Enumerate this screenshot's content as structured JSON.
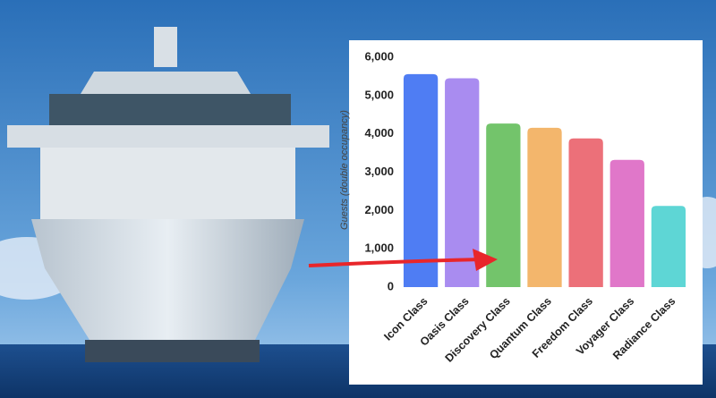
{
  "chart_data": {
    "type": "bar",
    "y_label": "Guests (double occupancy)",
    "categories": [
      "Icon Class",
      "Oasis Class",
      "Discovery Class",
      "Quantum Class",
      "Freedom Class",
      "Voyager Class",
      "Radiance Class"
    ],
    "values": [
      5560,
      5450,
      4270,
      4160,
      3880,
      3320,
      2120
    ],
    "colors": [
      "#4f7df3",
      "#a98cf0",
      "#73c46b",
      "#f3b66c",
      "#ec7079",
      "#e077c9",
      "#5ed6d5"
    ],
    "ylim": [
      0,
      6000
    ],
    "yticks": [
      0,
      {
        "value": 1000,
        "label": "1,000"
      },
      {
        "value": 2000,
        "label": "2,000"
      },
      {
        "value": 3000,
        "label": "3,000"
      },
      {
        "value": 4000,
        "label": "4,000"
      },
      {
        "value": 5000,
        "label": "5,000"
      },
      {
        "value": 6000,
        "label": "6,000"
      }
    ],
    "grid": false
  }
}
